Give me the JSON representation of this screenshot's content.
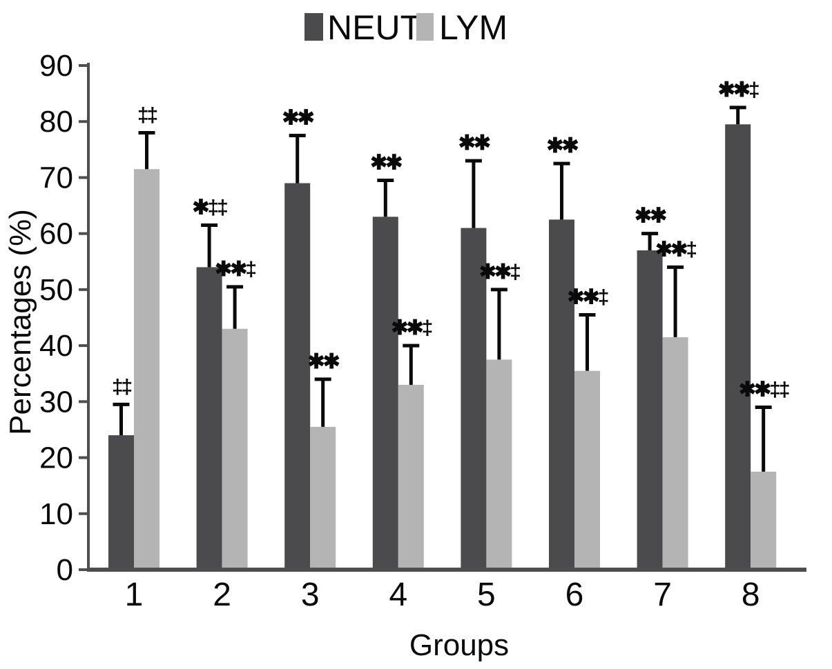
{
  "figure": {
    "background": "#ffffff",
    "text_color": "#0a0a0a",
    "axis_color": "#4e4e4e"
  },
  "legend": {
    "items": [
      {
        "label": "NEUT",
        "color": "#4b4b4e"
      },
      {
        "label": "LYM",
        "color": "#b4b4b4"
      }
    ]
  },
  "chart_data": {
    "type": "bar",
    "title": "",
    "xlabel": "Groups",
    "ylabel": "Percentages (%)",
    "ylim": [
      0,
      90
    ],
    "ytick_step": 10,
    "yticks": [
      0,
      10,
      20,
      30,
      40,
      50,
      60,
      70,
      80,
      90
    ],
    "grid": false,
    "legend_position": "top-center",
    "error_bars": "upper-only",
    "categories": [
      "1",
      "2",
      "3",
      "4",
      "5",
      "6",
      "7",
      "8"
    ],
    "series": [
      {
        "name": "NEUT",
        "color": "#4b4b4e",
        "values": [
          24,
          54,
          69,
          63,
          61,
          62.5,
          57,
          79.5
        ],
        "errors_upper": [
          5.5,
          7.5,
          8.5,
          6.5,
          12,
          10,
          3,
          3
        ],
        "sig_markers": [
          "‡‡",
          "✱‡‡",
          "✱✱",
          "✱✱",
          "✱✱",
          "✱✱",
          "✱✱",
          "✱✱‡"
        ]
      },
      {
        "name": "LYM",
        "color": "#b4b4b4",
        "values": [
          71.5,
          43,
          25.5,
          33,
          37.5,
          35.5,
          41.5,
          17.5
        ],
        "errors_upper": [
          6.5,
          7.5,
          8.5,
          7,
          12.5,
          10,
          12.5,
          11.5
        ],
        "sig_markers": [
          "‡‡",
          "✱✱‡",
          "✱✱",
          "✱✱‡",
          "✱✱‡",
          "✱✱‡",
          "✱✱‡",
          "✱✱‡‡"
        ]
      }
    ]
  }
}
